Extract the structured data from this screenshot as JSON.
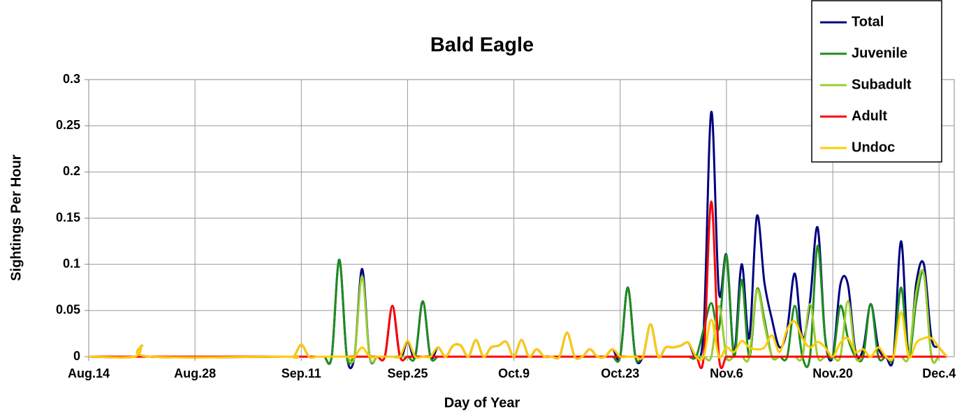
{
  "chart_data": {
    "type": "line",
    "title": "Bald Eagle",
    "x_label": "Day of Year",
    "y_label": "Sightings Per Hour",
    "xlim": [
      226,
      340
    ],
    "ylim": [
      0,
      0.3
    ],
    "xticks": [
      {
        "value": 226,
        "label": "Aug.14"
      },
      {
        "value": 240,
        "label": "Aug.28"
      },
      {
        "value": 254,
        "label": "Sep.11"
      },
      {
        "value": 268,
        "label": "Sep.25"
      },
      {
        "value": 282,
        "label": "Oct.9"
      },
      {
        "value": 296,
        "label": "Oct.23"
      },
      {
        "value": 310,
        "label": "Nov.6"
      },
      {
        "value": 324,
        "label": "Nov.20"
      },
      {
        "value": 338,
        "label": "Dec.4"
      }
    ],
    "yticks": [
      0,
      0.05,
      0.1,
      0.15,
      0.2,
      0.25,
      0.3
    ],
    "grid": true,
    "legend": "top-right",
    "x": [
      226,
      232,
      233,
      234,
      252,
      253,
      254,
      255,
      256,
      257,
      258,
      259,
      260,
      261,
      262,
      263,
      264,
      265,
      266,
      267,
      268,
      269,
      270,
      271,
      272,
      273,
      274,
      275,
      276,
      277,
      278,
      279,
      280,
      281,
      282,
      283,
      284,
      285,
      286,
      287,
      288,
      289,
      290,
      291,
      292,
      293,
      294,
      295,
      296,
      297,
      298,
      299,
      300,
      301,
      302,
      303,
      304,
      305,
      306,
      307,
      308,
      309,
      310,
      311,
      312,
      313,
      314,
      315,
      316,
      317,
      318,
      319,
      320,
      321,
      322,
      323,
      324,
      325,
      326,
      327,
      328,
      329,
      330,
      331,
      332,
      333,
      334,
      335,
      336,
      337,
      338,
      339
    ],
    "series": [
      {
        "name": "Total",
        "color": "#000080",
        "values": [
          0,
          0,
          0.012,
          0,
          0,
          0,
          0.013,
          0,
          0,
          0,
          0,
          0.105,
          0,
          0,
          0.095,
          0,
          0,
          0,
          0.055,
          0,
          0.017,
          0,
          0.06,
          0,
          0.01,
          0,
          0.012,
          0.012,
          0,
          0.018,
          0,
          0.01,
          0.012,
          0.016,
          0,
          0.018,
          0,
          0.008,
          0,
          0,
          0,
          0.026,
          0,
          0,
          0.008,
          0,
          0,
          0.008,
          0,
          0.075,
          0,
          0,
          0.035,
          0,
          0.01,
          0.01,
          0.012,
          0.015,
          0,
          0.03,
          0.265,
          0.07,
          0.11,
          0.005,
          0.1,
          0.02,
          0.152,
          0.08,
          0.04,
          0.01,
          0.03,
          0.09,
          0.02,
          0.06,
          0.14,
          0.02,
          0,
          0.078,
          0.078,
          0.005,
          0.008,
          0.057,
          0.01,
          0,
          0,
          0.125,
          0,
          0.08,
          0.1,
          0.02,
          0.01,
          0
        ]
      },
      {
        "name": "Juvenile",
        "color": "#1e8c1e",
        "values": [
          0,
          0,
          0,
          0,
          0,
          0,
          0,
          0,
          0,
          0,
          0,
          0.105,
          0,
          0,
          0,
          0,
          0,
          0,
          0,
          0,
          0,
          0,
          0.06,
          0,
          0,
          0,
          0,
          0,
          0,
          0,
          0,
          0,
          0,
          0,
          0,
          0,
          0,
          0,
          0,
          0,
          0,
          0,
          0,
          0,
          0,
          0,
          0,
          0,
          0,
          0.075,
          0,
          0,
          0,
          0,
          0,
          0,
          0,
          0,
          0,
          0.03,
          0.058,
          0.03,
          0.11,
          0,
          0.083,
          0,
          0.073,
          0.04,
          0,
          0,
          0,
          0.055,
          0,
          0,
          0.12,
          0.02,
          0,
          0.055,
          0.02,
          0,
          0,
          0.057,
          0,
          0,
          0,
          0.075,
          0,
          0.06,
          0.09,
          0,
          0,
          0
        ]
      },
      {
        "name": "Subadult",
        "color": "#9acd32",
        "values": [
          0,
          0,
          0,
          0,
          0,
          0,
          0,
          0,
          0,
          0,
          0,
          0,
          0,
          0,
          0.087,
          0,
          0,
          0,
          0,
          0,
          0,
          0,
          0,
          0,
          0,
          0,
          0,
          0,
          0,
          0,
          0,
          0,
          0,
          0,
          0,
          0,
          0,
          0,
          0,
          0,
          0,
          0,
          0,
          0,
          0,
          0,
          0,
          0,
          0,
          0,
          0,
          0,
          0,
          0,
          0,
          0,
          0,
          0,
          0,
          0,
          0,
          0.055,
          0,
          0,
          0,
          0,
          0.072,
          0.035,
          0,
          0,
          0,
          0,
          0,
          0.057,
          0,
          0,
          0,
          0,
          0.06,
          0,
          0,
          0,
          0,
          0,
          0,
          0,
          0,
          0.07,
          0.09,
          0,
          0,
          0
        ]
      },
      {
        "name": "Adult",
        "color": "#ff0000",
        "values": [
          0,
          0,
          0,
          0,
          0,
          0,
          0,
          0,
          0,
          0,
          0,
          0,
          0,
          0,
          0,
          0,
          0,
          0,
          0.055,
          0,
          0,
          0,
          0,
          0,
          0,
          0,
          0,
          0,
          0,
          0,
          0,
          0,
          0,
          0,
          0,
          0,
          0,
          0,
          0,
          0,
          0,
          0,
          0,
          0,
          0,
          0,
          0,
          0,
          0,
          0,
          0,
          0,
          0,
          0,
          0,
          0,
          0,
          0,
          0,
          0,
          0.168,
          0,
          0,
          0,
          0,
          0,
          0,
          0,
          0,
          0,
          0,
          0,
          0,
          0,
          0,
          0,
          0,
          0,
          0,
          0,
          0,
          0,
          0,
          0,
          0,
          0,
          0,
          0,
          0,
          0,
          0,
          0
        ]
      },
      {
        "name": "Undoc",
        "color": "#ffcc00",
        "values": [
          0,
          0,
          0.012,
          0,
          0,
          0,
          0.013,
          0,
          0,
          0,
          0,
          0,
          0,
          0,
          0.01,
          0,
          0,
          0,
          0,
          0,
          0.017,
          0,
          0,
          0,
          0.01,
          0,
          0.012,
          0.012,
          0,
          0.018,
          0,
          0.01,
          0.012,
          0.016,
          0,
          0.018,
          0,
          0.008,
          0,
          0,
          0,
          0.026,
          0,
          0,
          0.008,
          0,
          0,
          0.008,
          0,
          0,
          0,
          0,
          0.035,
          0,
          0.01,
          0.01,
          0.012,
          0.015,
          0,
          0,
          0.04,
          0,
          0.01,
          0.005,
          0.017,
          0.01,
          0.008,
          0.01,
          0.023,
          0.005,
          0.03,
          0.038,
          0.02,
          0.01,
          0.016,
          0.01,
          0,
          0.015,
          0.02,
          0.005,
          0.008,
          0,
          0.01,
          0,
          0,
          0.048,
          0,
          0.015,
          0.02,
          0.02,
          0.01,
          0
        ]
      }
    ]
  }
}
